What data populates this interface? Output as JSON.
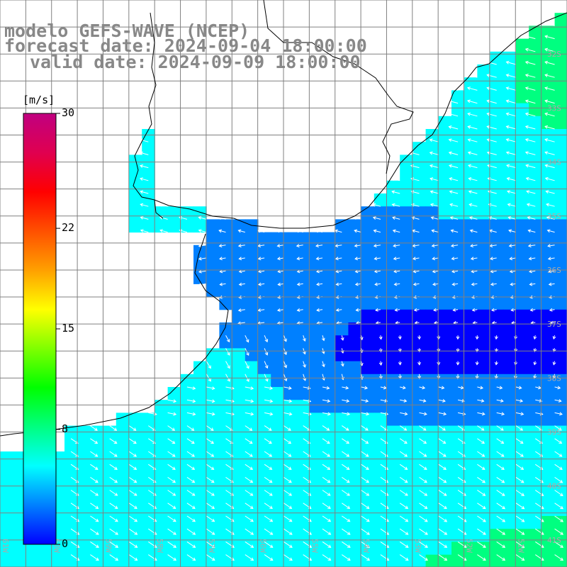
{
  "header": {
    "line1": "modelo GEFS-WAVE (NCEP)",
    "line2": "forecast date: 2024-09-04 18:00:00",
    "line3": "valid date: 2024-09-09 18:00:00"
  },
  "colorbar": {
    "unit": "[m/s]",
    "ticks": [
      {
        "value": 30,
        "label": "30"
      },
      {
        "value": 22,
        "label": "22"
      },
      {
        "value": 15,
        "label": "15"
      },
      {
        "value": 8,
        "label": "8"
      },
      {
        "value": 0,
        "label": "0"
      }
    ],
    "range": [
      0,
      30
    ],
    "colors": [
      "#0000ff",
      "#0080ff",
      "#00ffff",
      "#00ff80",
      "#00ff00",
      "#80ff00",
      "#ffff00",
      "#ffa000",
      "#ff5000",
      "#ff0000",
      "#e00050",
      "#c00080"
    ]
  },
  "map": {
    "lon_range": [
      -61,
      -50
    ],
    "lat_range": [
      -41.5,
      -31
    ],
    "lat_labels": [
      "32S",
      "33S",
      "34S",
      "35S",
      "36S",
      "37S",
      "38S",
      "39S",
      "40S",
      "41S"
    ],
    "lon_labels": [
      "61W",
      "60W",
      "59W",
      "58W",
      "57W",
      "56W",
      "55W",
      "54W",
      "53W",
      "52W",
      "51W"
    ],
    "colors": {
      "land": "#ffffff",
      "coast": "#000000",
      "grid": "#808080",
      "arrow": "#ffffff"
    }
  }
}
